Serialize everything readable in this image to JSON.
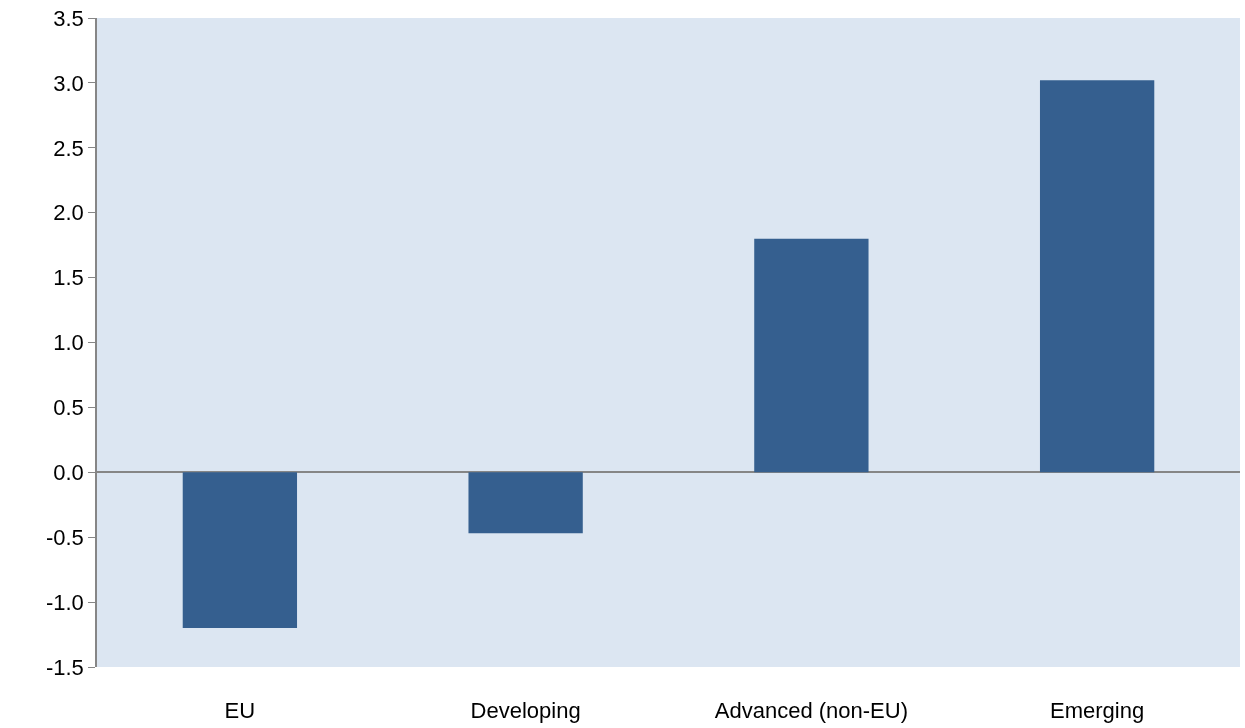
{
  "chart_data": {
    "type": "bar",
    "categories": [
      "EU",
      "Developing",
      "Advanced (non-EU)",
      "Emerging"
    ],
    "values": [
      -1.2,
      -0.47,
      1.8,
      3.02
    ],
    "color": "#355f8f",
    "ylim": [
      -1.5,
      3.5
    ],
    "yticks": [
      {
        "value": -1.5,
        "label": "-1.5"
      },
      {
        "value": -1,
        "label": "-1.0"
      },
      {
        "value": -0.5,
        "label": "-0.5"
      },
      {
        "value": 0,
        "label": "0.0"
      },
      {
        "value": 0.5,
        "label": "0.5"
      },
      {
        "value": 1,
        "label": "1.0"
      },
      {
        "value": 1.5,
        "label": "1.5"
      },
      {
        "value": 2,
        "label": "2.0"
      },
      {
        "value": 2.5,
        "label": "2.5"
      },
      {
        "value": 3,
        "label": "3.0"
      },
      {
        "value": 3.5,
        "label": "3.5"
      }
    ]
  }
}
